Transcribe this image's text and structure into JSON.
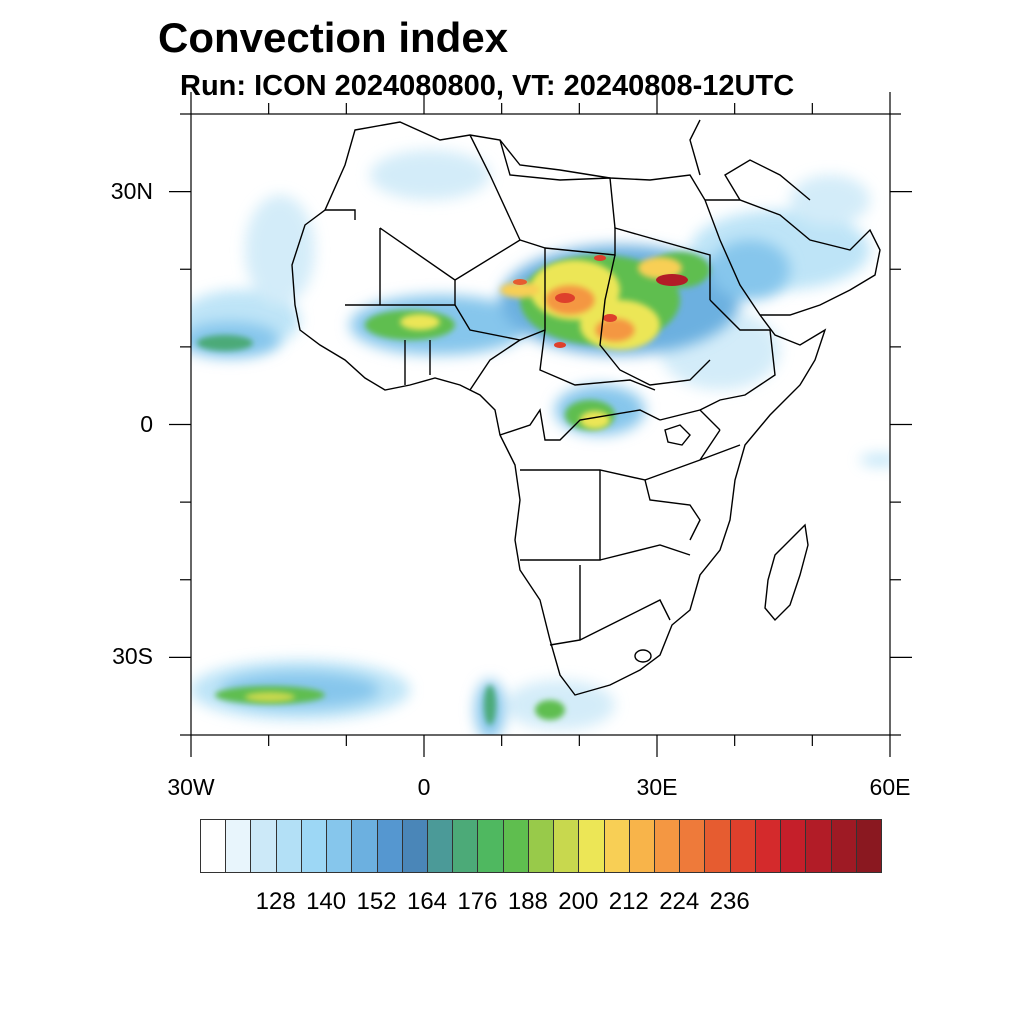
{
  "title": "Convection index",
  "subtitle": "Run: ICON 2024080800,  VT: 20240808-12UTC",
  "map": {
    "lon_range": [
      -30,
      60
    ],
    "lat_range": [
      -40,
      40
    ],
    "lat_ticks": [
      {
        "value": 30,
        "label": "30N"
      },
      {
        "value": 0,
        "label": "0"
      },
      {
        "value": -30,
        "label": "30S"
      }
    ],
    "lon_ticks": [
      {
        "value": -30,
        "label": "30W"
      },
      {
        "value": 0,
        "label": "0"
      },
      {
        "value": 30,
        "label": "30E"
      },
      {
        "value": 60,
        "label": "60E"
      }
    ]
  },
  "colorbar": {
    "colors": [
      "#ffffff",
      "#e8f5fc",
      "#cce9f8",
      "#b3e0f6",
      "#9dd7f5",
      "#86c6ec",
      "#6cb0e0",
      "#5597d0",
      "#4a86b8",
      "#4b9a98",
      "#4caa78",
      "#4fb860",
      "#5fbe4f",
      "#98ca4a",
      "#c8d84e",
      "#ece656",
      "#f8cf55",
      "#f8b44a",
      "#f49742",
      "#ee7a3a",
      "#e65c30",
      "#de402c",
      "#d42a2c",
      "#c51f2a",
      "#b21c27",
      "#9e1a24",
      "#8a1820"
    ],
    "labels": [
      "128",
      "140",
      "152",
      "164",
      "176",
      "188",
      "200",
      "212",
      "224",
      "236"
    ]
  }
}
